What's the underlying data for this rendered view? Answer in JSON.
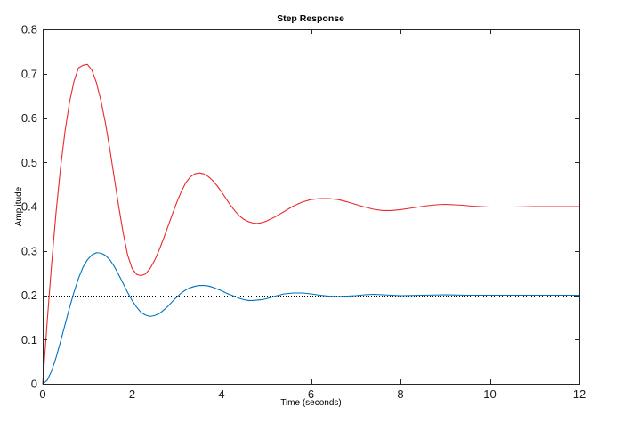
{
  "chart_data": {
    "type": "line",
    "title": "Step Response",
    "xlabel": "Time (seconds)",
    "ylabel": "Amplitude",
    "xlim": [
      0,
      12
    ],
    "ylim": [
      0,
      0.8
    ],
    "xticks": [
      0,
      2,
      4,
      6,
      8,
      10,
      12
    ],
    "yticks": [
      0,
      0.1,
      0.2,
      0.3,
      0.4,
      0.5,
      0.6,
      0.7,
      0.8
    ],
    "xtick_labels": [
      "0",
      "2",
      "4",
      "6",
      "8",
      "10",
      "12"
    ],
    "ytick_labels": [
      "0",
      "0.1",
      "0.2",
      "0.3",
      "0.4",
      "0.5",
      "0.6",
      "0.7",
      "0.8"
    ],
    "grid": false,
    "legend": "none",
    "reference_lines": [
      {
        "y": 0.2,
        "style": "dotted",
        "color": "#000000"
      },
      {
        "y": 0.4,
        "style": "dotted",
        "color": "#000000"
      }
    ],
    "series": [
      {
        "color": "#0072bd",
        "x": [
          0,
          0.1,
          0.2,
          0.3,
          0.4,
          0.5,
          0.6,
          0.7,
          0.8,
          0.9,
          1.0,
          1.1,
          1.2,
          1.3,
          1.4,
          1.5,
          1.6,
          1.7,
          1.8,
          1.9,
          2.0,
          2.1,
          2.2,
          2.3,
          2.4,
          2.5,
          2.6,
          2.7,
          2.8,
          2.9,
          3.0,
          3.1,
          3.2,
          3.3,
          3.4,
          3.5,
          3.6,
          3.7,
          3.8,
          3.9,
          4.0,
          4.1,
          4.2,
          4.3,
          4.4,
          4.5,
          4.6,
          4.7,
          4.8,
          4.9,
          5.0,
          5.2,
          5.4,
          5.6,
          5.8,
          6.0,
          6.2,
          6.4,
          6.6,
          6.8,
          7.0,
          7.2,
          7.4,
          7.6,
          7.8,
          8.0,
          8.5,
          9.0,
          9.5,
          10.0,
          10.5,
          11.0,
          11.5,
          12.0
        ],
        "values": [
          0,
          0.008,
          0.029,
          0.06,
          0.096,
          0.134,
          0.172,
          0.207,
          0.238,
          0.263,
          0.28,
          0.291,
          0.296,
          0.295,
          0.29,
          0.28,
          0.265,
          0.246,
          0.226,
          0.206,
          0.188,
          0.173,
          0.161,
          0.155,
          0.152,
          0.154,
          0.158,
          0.166,
          0.175,
          0.186,
          0.196,
          0.205,
          0.212,
          0.217,
          0.22,
          0.222,
          0.222,
          0.221,
          0.218,
          0.214,
          0.21,
          0.205,
          0.201,
          0.197,
          0.193,
          0.19,
          0.188,
          0.188,
          0.189,
          0.19,
          0.192,
          0.198,
          0.203,
          0.205,
          0.205,
          0.203,
          0.2,
          0.198,
          0.197,
          0.198,
          0.199,
          0.201,
          0.202,
          0.201,
          0.2,
          0.199,
          0.2,
          0.201,
          0.2,
          0.2,
          0.2,
          0.2,
          0.2,
          0.2
        ]
      },
      {
        "color": "#e8292d",
        "x": [
          0,
          0.1,
          0.2,
          0.3,
          0.4,
          0.5,
          0.6,
          0.7,
          0.8,
          0.9,
          1.0,
          1.1,
          1.2,
          1.3,
          1.4,
          1.5,
          1.6,
          1.7,
          1.8,
          1.9,
          2.0,
          2.1,
          2.2,
          2.3,
          2.4,
          2.5,
          2.6,
          2.7,
          2.8,
          2.9,
          3.0,
          3.1,
          3.2,
          3.3,
          3.4,
          3.5,
          3.6,
          3.7,
          3.8,
          3.9,
          4.0,
          4.1,
          4.2,
          4.3,
          4.4,
          4.5,
          4.6,
          4.7,
          4.8,
          4.9,
          5.0,
          5.1,
          5.2,
          5.3,
          5.4,
          5.5,
          5.6,
          5.8,
          6.0,
          6.2,
          6.4,
          6.6,
          6.8,
          7.0,
          7.2,
          7.4,
          7.6,
          7.8,
          8.0,
          8.2,
          8.4,
          8.6,
          8.8,
          9.0,
          9.2,
          9.4,
          9.6,
          9.8,
          10.0,
          10.5,
          11.0,
          11.5,
          12.0
        ],
        "values": [
          0,
          0.14,
          0.272,
          0.389,
          0.489,
          0.571,
          0.636,
          0.683,
          0.713,
          0.719,
          0.721,
          0.708,
          0.68,
          0.64,
          0.59,
          0.53,
          0.465,
          0.4,
          0.34,
          0.29,
          0.26,
          0.247,
          0.244,
          0.248,
          0.26,
          0.278,
          0.301,
          0.327,
          0.355,
          0.383,
          0.41,
          0.434,
          0.454,
          0.467,
          0.474,
          0.476,
          0.474,
          0.468,
          0.459,
          0.447,
          0.433,
          0.418,
          0.403,
          0.39,
          0.379,
          0.371,
          0.366,
          0.363,
          0.362,
          0.364,
          0.367,
          0.372,
          0.377,
          0.383,
          0.389,
          0.395,
          0.401,
          0.41,
          0.416,
          0.418,
          0.418,
          0.416,
          0.411,
          0.405,
          0.399,
          0.394,
          0.391,
          0.391,
          0.393,
          0.396,
          0.399,
          0.402,
          0.404,
          0.405,
          0.404,
          0.403,
          0.401,
          0.4,
          0.399,
          0.399,
          0.4,
          0.4,
          0.4
        ]
      }
    ]
  }
}
